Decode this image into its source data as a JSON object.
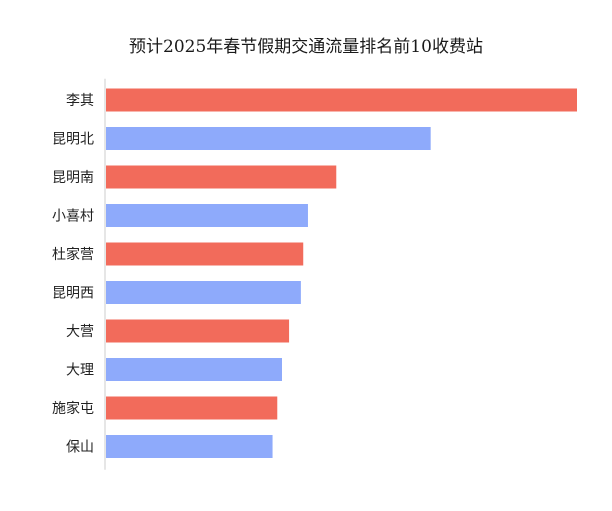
{
  "chart_data": {
    "type": "bar",
    "orientation": "horizontal",
    "title": "预计2025年春节假期交通流量排名前10收费站",
    "xlabel": "",
    "ylabel": "",
    "categories": [
      "李其",
      "昆明北",
      "昆明南",
      "小喜村",
      "杜家营",
      "昆明西",
      "大营",
      "大理",
      "施家屯",
      "保山"
    ],
    "values": [
      100,
      69,
      49,
      43,
      42,
      41.5,
      39,
      37.5,
      36.5,
      35.5
    ],
    "xlim": [
      0,
      100
    ],
    "grid": false,
    "legend": "none",
    "bar_colors": [
      "#f26b5b",
      "#8eaafb",
      "#f26b5b",
      "#8eaafb",
      "#f26b5b",
      "#8eaafb",
      "#f26b5b",
      "#8eaafb",
      "#f26b5b",
      "#8eaafb"
    ],
    "axis_color": "#cccccc"
  }
}
